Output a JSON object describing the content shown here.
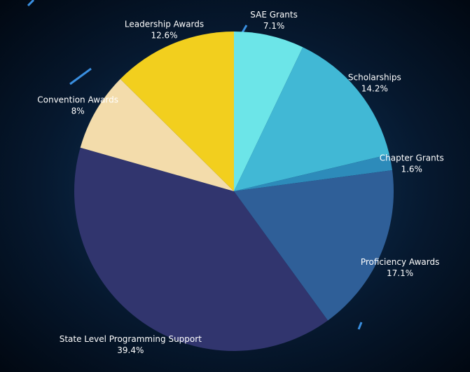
{
  "chart_data": {
    "type": "pie",
    "categories": [
      "SAE Grants",
      "Scholarships",
      "Chapter Grants",
      "Proficiency Awards",
      "State Level Programming Support",
      "Convention Awards",
      "Leadership Awards"
    ],
    "values": [
      7.1,
      14.2,
      1.6,
      17.1,
      39.4,
      8,
      12.6
    ],
    "value_labels": [
      "7.1%",
      "14.2%",
      "1.6%",
      "17.1%",
      "39.4%",
      "8%",
      "12.6%"
    ],
    "colors": [
      "#6ce5e8",
      "#41b8d5",
      "#2d8bba",
      "#2f5f98",
      "#31356e",
      "#f3dcab",
      "#f2cf1e"
    ]
  }
}
